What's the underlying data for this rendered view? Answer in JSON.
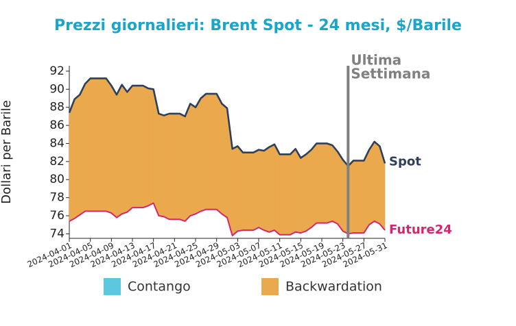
{
  "chart_data": {
    "type": "line",
    "title": "Prezzi giornalieri: Brent Spot - 24 mesi, $/Barile",
    "y_label": "Dollari per Barile",
    "x": [
      "2024-04-01",
      "2024-04-02",
      "2024-04-03",
      "2024-04-04",
      "2024-04-05",
      "2024-04-06",
      "2024-04-07",
      "2024-04-08",
      "2024-04-09",
      "2024-04-10",
      "2024-04-11",
      "2024-04-12",
      "2024-04-13",
      "2024-04-14",
      "2024-04-15",
      "2024-04-16",
      "2024-04-17",
      "2024-04-18",
      "2024-04-19",
      "2024-04-20",
      "2024-04-21",
      "2024-04-22",
      "2024-04-23",
      "2024-04-24",
      "2024-04-25",
      "2024-04-26",
      "2024-04-27",
      "2024-04-28",
      "2024-04-29",
      "2024-04-30",
      "2024-05-01",
      "2024-05-02",
      "2024-05-03",
      "2024-05-04",
      "2024-05-05",
      "2024-05-06",
      "2024-05-07",
      "2024-05-08",
      "2024-05-09",
      "2024-05-10",
      "2024-05-11",
      "2024-05-12",
      "2024-05-13",
      "2024-05-14",
      "2024-05-15",
      "2024-05-16",
      "2024-05-17",
      "2024-05-18",
      "2024-05-19",
      "2024-05-20",
      "2024-05-21",
      "2024-05-22",
      "2024-05-23",
      "2024-05-24",
      "2024-05-25",
      "2024-05-26",
      "2024-05-27",
      "2024-05-28",
      "2024-05-29",
      "2024-05-30",
      "2024-05-31"
    ],
    "series": [
      {
        "name": "Spot",
        "color": "#2e3f5c",
        "values": [
          87.4,
          88.9,
          89.4,
          90.6,
          91.2,
          91.2,
          91.2,
          91.2,
          90.4,
          89.4,
          90.5,
          89.7,
          90.4,
          90.4,
          90.4,
          90.1,
          90.0,
          87.3,
          87.1,
          87.3,
          87.3,
          87.3,
          87.0,
          88.4,
          88.0,
          89.0,
          89.5,
          89.5,
          89.5,
          88.4,
          87.9,
          83.4,
          83.7,
          83.0,
          83.0,
          83.0,
          83.3,
          83.2,
          83.6,
          83.9,
          82.8,
          82.8,
          82.8,
          83.4,
          82.4,
          82.8,
          83.3,
          84.0,
          84.0,
          84.0,
          83.8,
          83.1,
          82.2,
          81.5,
          82.1,
          82.1,
          82.1,
          83.3,
          84.2,
          83.7,
          81.8
        ]
      },
      {
        "name": "Future24",
        "color": "#d6246e",
        "values": [
          75.4,
          75.7,
          76.1,
          76.5,
          76.5,
          76.5,
          76.5,
          76.5,
          76.3,
          75.8,
          76.2,
          76.4,
          76.9,
          76.9,
          76.9,
          77.1,
          77.4,
          76.0,
          75.9,
          75.6,
          75.6,
          75.6,
          75.4,
          76.0,
          76.2,
          76.5,
          76.7,
          76.7,
          76.7,
          76.2,
          75.8,
          73.8,
          74.3,
          74.4,
          74.4,
          74.4,
          74.7,
          74.4,
          74.2,
          74.4,
          73.9,
          73.9,
          73.9,
          74.2,
          74.1,
          74.3,
          74.7,
          75.2,
          75.2,
          75.2,
          75.4,
          75.1,
          74.3,
          74.0,
          74.1,
          74.1,
          74.1,
          75.0,
          75.4,
          75.1,
          74.4
        ]
      }
    ],
    "fill_legend": [
      {
        "name": "Contango",
        "color": "#5bc8e0"
      },
      {
        "name": "Backwardation",
        "color": "#eaa94c"
      }
    ],
    "annotation": {
      "lines": [
        "Ultima",
        "Settimana"
      ],
      "x": "2024-05-24",
      "color": "#808080"
    },
    "xlim": [
      "2024-04-01",
      "2024-05-31"
    ],
    "xticks": [
      "2024-04-01",
      "2024-04-05",
      "2024-04-09",
      "2024-04-13",
      "2024-04-17",
      "2024-04-21",
      "2024-04-25",
      "2024-04-29",
      "2024-05-03",
      "2024-05-07",
      "2024-05-11",
      "2024-05-15",
      "2024-05-19",
      "2024-05-23",
      "2024-05-27",
      "2024-05-31"
    ],
    "ylim": [
      73.5,
      92.6
    ],
    "yticks": [
      74,
      76,
      78,
      80,
      82,
      84,
      86,
      88,
      90,
      92
    ]
  }
}
